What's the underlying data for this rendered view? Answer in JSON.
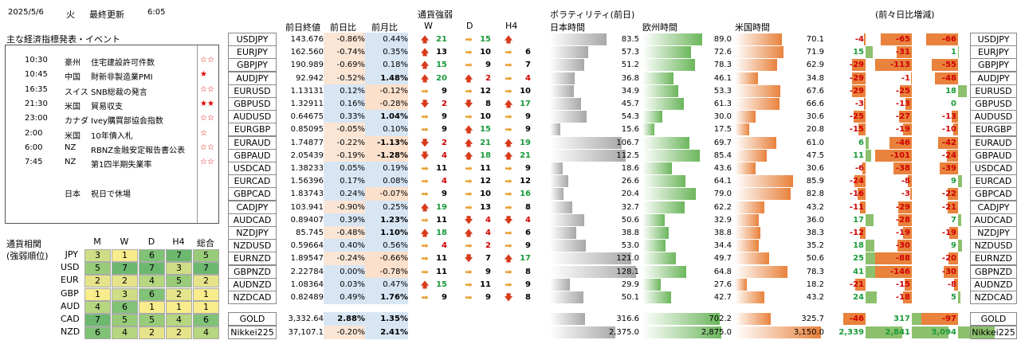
{
  "header": {
    "date": "2025/5/6",
    "weekday": "火",
    "updated_label": "最終更新",
    "time": "6:05"
  },
  "events": {
    "title": "主な経済指標発表・イベント",
    "items": [
      {
        "time": "10:30",
        "country": "豪州",
        "name": "住宅建設許可件数",
        "stars": "☆☆"
      },
      {
        "time": "10:45",
        "country": "中国",
        "name": "財新非製造業PMI",
        "stars": "★"
      },
      {
        "time": "16:35",
        "country": "スイス",
        "name": "SNB総裁の発言",
        "stars": "☆☆"
      },
      {
        "time": "21:30",
        "country": "米国",
        "name": "貿易収支",
        "stars": "★★"
      },
      {
        "time": "23:00",
        "country": "カナダ",
        "name": "Ivey購買部協会指数",
        "stars": "☆☆"
      },
      {
        "time": "2:00",
        "country": "米国",
        "name": "10年債入札",
        "stars": "☆"
      },
      {
        "time": "6:00",
        "country": "NZ",
        "name": "RBNZ金融安定報告書公表",
        "stars": "☆☆"
      },
      {
        "time": "7:45",
        "country": "NZ",
        "name": "第1四半期失業率",
        "stars": "☆☆"
      },
      {
        "time": "",
        "country": "",
        "name": "",
        "stars": ""
      },
      {
        "time": "",
        "country": "日本",
        "name": "祝日で休場",
        "stars": ""
      }
    ]
  },
  "strength": {
    "title1": "通貨相関",
    "title2": "(強弱順位)",
    "headers": [
      "M",
      "W",
      "D",
      "H4",
      "総合"
    ],
    "rows": [
      {
        "ccy": "JPY",
        "vals": [
          "3",
          "1",
          "6",
          "7",
          "5"
        ]
      },
      {
        "ccy": "USD",
        "vals": [
          "5",
          "7",
          "7",
          "3",
          "7"
        ]
      },
      {
        "ccy": "EUR",
        "vals": [
          "2",
          "2",
          "4",
          "5",
          "2"
        ]
      },
      {
        "ccy": "GBP",
        "vals": [
          "1",
          "3",
          "6",
          "2",
          "1"
        ]
      },
      {
        "ccy": "AUD",
        "vals": [
          "4",
          "6",
          "1",
          "1",
          "1"
        ]
      },
      {
        "ccy": "CAD",
        "vals": [
          "7",
          "5",
          "5",
          "4",
          "6"
        ]
      },
      {
        "ccy": "NZD",
        "vals": [
          "6",
          "4",
          "2",
          "2",
          "4"
        ]
      }
    ]
  },
  "columns": {
    "close": "前日終値",
    "dchg": "前日比",
    "mchg": "前月比",
    "strength": "通貨強弱",
    "w": "W",
    "d": "D",
    "h4": "H4",
    "vol": "ボラティリティ(前日)",
    "jp": "日本時間",
    "eu": "欧州時間",
    "us": "米国時間",
    "delta": "(前々日比増減)"
  },
  "rows": [
    {
      "pair": "USDJPY",
      "close": "143.676",
      "dchg": "-0.86%",
      "mchg": "0.44%",
      "w": "up",
      "ws": "21",
      "d": "right",
      "ds": "15",
      "h": "up",
      "hs": "",
      "jp": "83.5",
      "eu": "89.0",
      "us": "70.1",
      "d1": "-4",
      "d2": "-65",
      "d3": "-66"
    },
    {
      "pair": "EURJPY",
      "close": "162.560",
      "dchg": "-0.74%",
      "mchg": "0.35%",
      "w": "up",
      "ws": "13",
      "d": "right",
      "ds": "10",
      "h": "right",
      "hs": "6",
      "jp": "57.3",
      "eu": "72.6",
      "us": "71.9",
      "d1": "15",
      "d2": "-31",
      "d3": "1"
    },
    {
      "pair": "GBPJPY",
      "close": "190.989",
      "dchg": "-0.69%",
      "mchg": "0.18%",
      "w": "up",
      "ws": "15",
      "d": "right",
      "ds": "9",
      "h": "right",
      "hs": "7",
      "jp": "51.2",
      "eu": "78.3",
      "us": "62.9",
      "d1": "-29",
      "d2": "-113",
      "d3": "-55"
    },
    {
      "pair": "AUDJPY",
      "close": "92.942",
      "dchg": "-0.52%",
      "mchg": "1.48%",
      "w": "up",
      "ws": "20",
      "d": "up",
      "ds": "2",
      "h": "right",
      "hs": "4",
      "jp": "36.8",
      "eu": "46.1",
      "us": "34.8",
      "d1": "-29",
      "d2": "-1",
      "d3": "-48"
    },
    {
      "pair": "EURUSD",
      "close": "1.13131",
      "dchg": "0.12%",
      "mchg": "-0.12%",
      "w": "right",
      "ws": "9",
      "d": "right",
      "ds": "12",
      "h": "right",
      "hs": "10",
      "jp": "34.9",
      "eu": "53.3",
      "us": "67.6",
      "d1": "-29",
      "d2": "-25",
      "d3": "18"
    },
    {
      "pair": "GBPUSD",
      "close": "1.32911",
      "dchg": "0.16%",
      "mchg": "-0.28%",
      "w": "down",
      "ws": "2",
      "d": "down",
      "ds": "8",
      "h": "up",
      "hs": "17",
      "jp": "45.7",
      "eu": "61.3",
      "us": "66.6",
      "d1": "-3",
      "d2": "-13",
      "d3": "0"
    },
    {
      "pair": "AUDUSD",
      "close": "0.64675",
      "dchg": "0.33%",
      "mchg": "1.04%",
      "w": "right",
      "ws": "9",
      "d": "right",
      "ds": "10",
      "h": "right",
      "hs": "9",
      "jp": "54.3",
      "eu": "30.0",
      "us": "30.6",
      "d1": "-25",
      "d2": "-27",
      "d3": "-13"
    },
    {
      "pair": "EURGBP",
      "close": "0.85095",
      "dchg": "-0.05%",
      "mchg": "0.10%",
      "w": "right",
      "ws": "9",
      "d": "up",
      "ds": "15",
      "h": "right",
      "hs": "9",
      "jp": "15.6",
      "eu": "17.5",
      "us": "20.8",
      "d1": "-15",
      "d2": "-19",
      "d3": "-10"
    },
    {
      "pair": "EURAUD",
      "close": "1.74877",
      "dchg": "-0.22%",
      "mchg": "-1.13%",
      "w": "down",
      "ws": "2",
      "d": "up",
      "ds": "21",
      "h": "up",
      "hs": "19",
      "jp": "106.7",
      "eu": "69.7",
      "us": "61.0",
      "d1": "6",
      "d2": "-46",
      "d3": "-42"
    },
    {
      "pair": "GBPAUD",
      "close": "2.05439",
      "dchg": "-0.19%",
      "mchg": "-1.28%",
      "w": "down",
      "ws": "4",
      "d": "up",
      "ds": "18",
      "h": "up",
      "hs": "21",
      "jp": "112.5",
      "eu": "85.4",
      "us": "47.5",
      "d1": "11",
      "d2": "-101",
      "d3": "-24"
    },
    {
      "pair": "USDCAD",
      "close": "1.38233",
      "dchg": "0.05%",
      "mchg": "0.19%",
      "w": "right",
      "ws": "11",
      "d": "right",
      "ds": "11",
      "h": "right",
      "hs": "9",
      "jp": "18.6",
      "eu": "43.6",
      "us": "30.6",
      "d1": "-6",
      "d2": "-38",
      "d3": "-39"
    },
    {
      "pair": "EURCAD",
      "close": "1.56396",
      "dchg": "0.17%",
      "mchg": "0.08%",
      "w": "right",
      "ws": "4",
      "d": "right",
      "ds": "12",
      "h": "right",
      "hs": "12",
      "jp": "26.6",
      "eu": "64.1",
      "us": "85.9",
      "d1": "-24",
      "d2": "-8",
      "d3": "9"
    },
    {
      "pair": "GBPCAD",
      "close": "1.83743",
      "dchg": "0.24%",
      "mchg": "-0.07%",
      "w": "right",
      "ws": "9",
      "d": "right",
      "ds": "10",
      "h": "right",
      "hs": "16",
      "jp": "20.4",
      "eu": "79.0",
      "us": "82.8",
      "d1": "-16",
      "d2": "-3",
      "d3": "-22"
    },
    {
      "pair": "CADJPY",
      "close": "103.941",
      "dchg": "-0.90%",
      "mchg": "0.25%",
      "w": "up",
      "ws": "19",
      "d": "right",
      "ds": "13",
      "h": "right",
      "hs": "8",
      "jp": "32.7",
      "eu": "62.2",
      "us": "43.2",
      "d1": "-11",
      "d2": "-29",
      "d3": "-21"
    },
    {
      "pair": "AUDCAD",
      "close": "0.89407",
      "dchg": "0.39%",
      "mchg": "1.23%",
      "w": "right",
      "ws": "11",
      "d": "down",
      "ds": "4",
      "h": "down",
      "hs": "4",
      "jp": "50.6",
      "eu": "32.9",
      "us": "36.0",
      "d1": "17",
      "d2": "-28",
      "d3": "7"
    },
    {
      "pair": "NZDJPY",
      "close": "85.745",
      "dchg": "-0.48%",
      "mchg": "1.10%",
      "w": "up",
      "ws": "18",
      "d": "up",
      "ds": "4",
      "h": "right",
      "hs": "6",
      "jp": "38.8",
      "eu": "38.8",
      "us": "38.3",
      "d1": "-12",
      "d2": "-19",
      "d3": "-19"
    },
    {
      "pair": "NZDUSD",
      "close": "0.59664",
      "dchg": "0.40%",
      "mchg": "0.56%",
      "w": "right",
      "ws": "4",
      "d": "right",
      "ds": "2",
      "h": "right",
      "hs": "9",
      "jp": "53.0",
      "eu": "34.4",
      "us": "35.2",
      "d1": "18",
      "d2": "-30",
      "d3": "9"
    },
    {
      "pair": "EURNZD",
      "close": "1.89547",
      "dchg": "-0.24%",
      "mchg": "-0.66%",
      "w": "right",
      "ws": "11",
      "d": "down",
      "ds": "7",
      "h": "up",
      "hs": "17",
      "jp": "121.0",
      "eu": "49.7",
      "us": "50.6",
      "d1": "25",
      "d2": "-88",
      "d3": "-20"
    },
    {
      "pair": "GBPNZD",
      "close": "2.22784",
      "dchg": "0.00%",
      "mchg": "-0.78%",
      "w": "right",
      "ws": "11",
      "d": "right",
      "ds": "9",
      "h": "right",
      "hs": "8",
      "jp": "128.1",
      "eu": "64.8",
      "us": "78.3",
      "d1": "41",
      "d2": "-146",
      "d3": "-30"
    },
    {
      "pair": "AUDNZD",
      "close": "1.08364",
      "dchg": "0.03%",
      "mchg": "0.47%",
      "w": "up",
      "ws": "15",
      "d": "right",
      "ds": "11",
      "h": "right",
      "hs": "9",
      "jp": "29.9",
      "eu": "27.6",
      "us": "18.2",
      "d1": "-21",
      "d2": "-15",
      "d3": "-8"
    },
    {
      "pair": "NZDCAD",
      "close": "0.82489",
      "dchg": "0.49%",
      "mchg": "1.76%",
      "w": "right",
      "ws": "9",
      "d": "right",
      "ds": "9",
      "h": "down",
      "hs": "8",
      "jp": "50.1",
      "eu": "42.7",
      "us": "43.2",
      "d1": "24",
      "d2": "-18",
      "d3": "5"
    }
  ],
  "extra": [
    {
      "pair": "GOLD",
      "close": "3,332.64",
      "dchg": "2.88%",
      "mchg": "1.35%",
      "jp": "316.6",
      "eu": "702.2",
      "us": "325.7",
      "d1": "-46",
      "d2": "317",
      "d3": "-97"
    },
    {
      "pair": "Nikkei225",
      "close": "37,107.1",
      "dchg": "-0.20%",
      "mchg": "2.41%",
      "jp": "2,375.0",
      "eu": "2,875.0",
      "us": "3,150.0",
      "d1": "2,339",
      "d2": "2,841",
      "d3": "3,094"
    }
  ]
}
